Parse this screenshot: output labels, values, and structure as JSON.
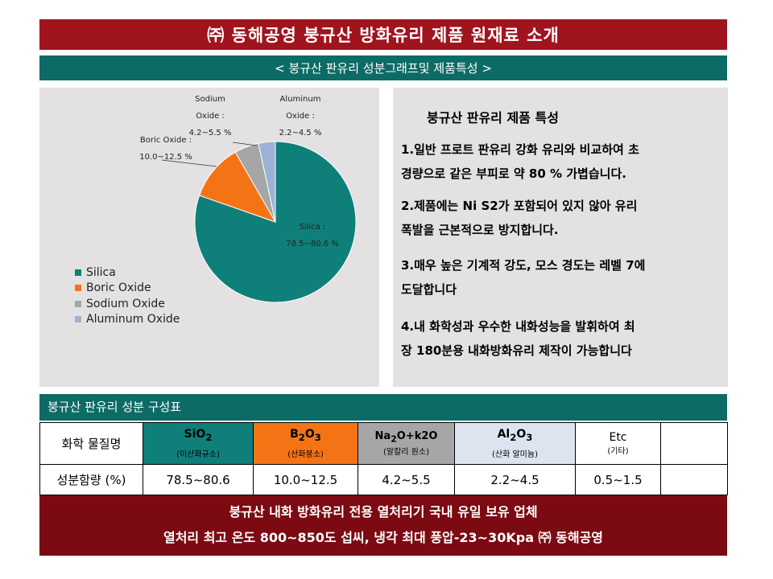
{
  "header": {
    "title": "㈜ 동해공영 붕규산 방화유리 제품 원재료 소개",
    "subtitle": "< 붕규산 판유리 성분그래프및 제품특성 >"
  },
  "colors": {
    "title_red": "#a0141e",
    "teal": "#0d6b66",
    "banner_red": "#7c0a12",
    "silica": "#0f7f7a",
    "boric": "#f47415",
    "sodium": "#a6a6a6",
    "aluminum": "#9db3d6",
    "panel_gray": "#e3e1e1"
  },
  "chart_data": {
    "type": "pie",
    "legend_position": "bottom-left",
    "slices": [
      {
        "name": "Silica",
        "range": "78.5~80.6 %",
        "value": 79.55
      },
      {
        "name": "Boric Oxide",
        "range": "10.0~12.5 %",
        "value": 11.25
      },
      {
        "name": "Sodium Oxide",
        "range": "4.2~5.5 %",
        "value": 4.85
      },
      {
        "name": "Aluminum Oxide",
        "range": "2.2~4.5 %",
        "value": 3.35
      }
    ],
    "data_labels": {
      "silica": [
        "Silica :",
        "78.5~80.6 %"
      ],
      "boric": [
        "Boric Oxide :",
        "10.0~12.5 %"
      ],
      "sodium": [
        "Sodium",
        "Oxide :",
        "4.2~5.5 %"
      ],
      "aluminum": [
        "Aluminum",
        "Oxide :",
        "2.2~4.5 %"
      ]
    }
  },
  "features": {
    "heading": "붕규산 판유리 제품 특성",
    "items": [
      {
        "line1": "1.일반 프로트 판유리 강화 유리와 비교하여 초",
        "line2": "경량으로 같은 부피로 약 80 % 가볍습니다."
      },
      {
        "line1": "2.제품에는 Ni S2가 포함되어 있지 않아 유리",
        "line2": "폭발을 근본적으로 방지합니다."
      },
      {
        "line1": "3.매우 높은 기계적 강도, 모스 경도는 레벨 7에",
        "line2": "도달합니다"
      },
      {
        "line1": "4.내 화학성과 우수한 내화성능을 발휘하여 최",
        "line2": "장 180분용 내화방화유리 제작이 가능합니다"
      }
    ]
  },
  "table": {
    "header": "붕규산 판유리 성분 구성표",
    "row1_label": "화학 물질명",
    "row2_label": "성분함량 (%)",
    "columns": [
      {
        "formula": [
          "SiO",
          "2",
          ""
        ],
        "name": "(이산화규소)",
        "content": "78.5~80.6"
      },
      {
        "formula": [
          "B",
          "2",
          "O",
          "3"
        ],
        "name": "(산화붕소)",
        "content": "10.0~12.5"
      },
      {
        "formula": [
          "Na",
          "2",
          "O+k2O"
        ],
        "name": "(알칼리 원소)",
        "content": "4.2~5.5"
      },
      {
        "formula": [
          "Al",
          "2",
          "O",
          "3"
        ],
        "name": "(산화 알미늄)",
        "content": "2.2~4.5"
      },
      {
        "formula": [
          "Etc"
        ],
        "name": "(기타)",
        "content": "0.5~1.5"
      }
    ]
  },
  "banner": {
    "line1": "붕규산 내화 방화유리 전용 열처리기 국내 유일 보유 업체",
    "line2": "열처리 최고 온도 800~850도 섭씨, 냉각 최대 풍압-23~30Kpa ㈜ 동해공영"
  }
}
